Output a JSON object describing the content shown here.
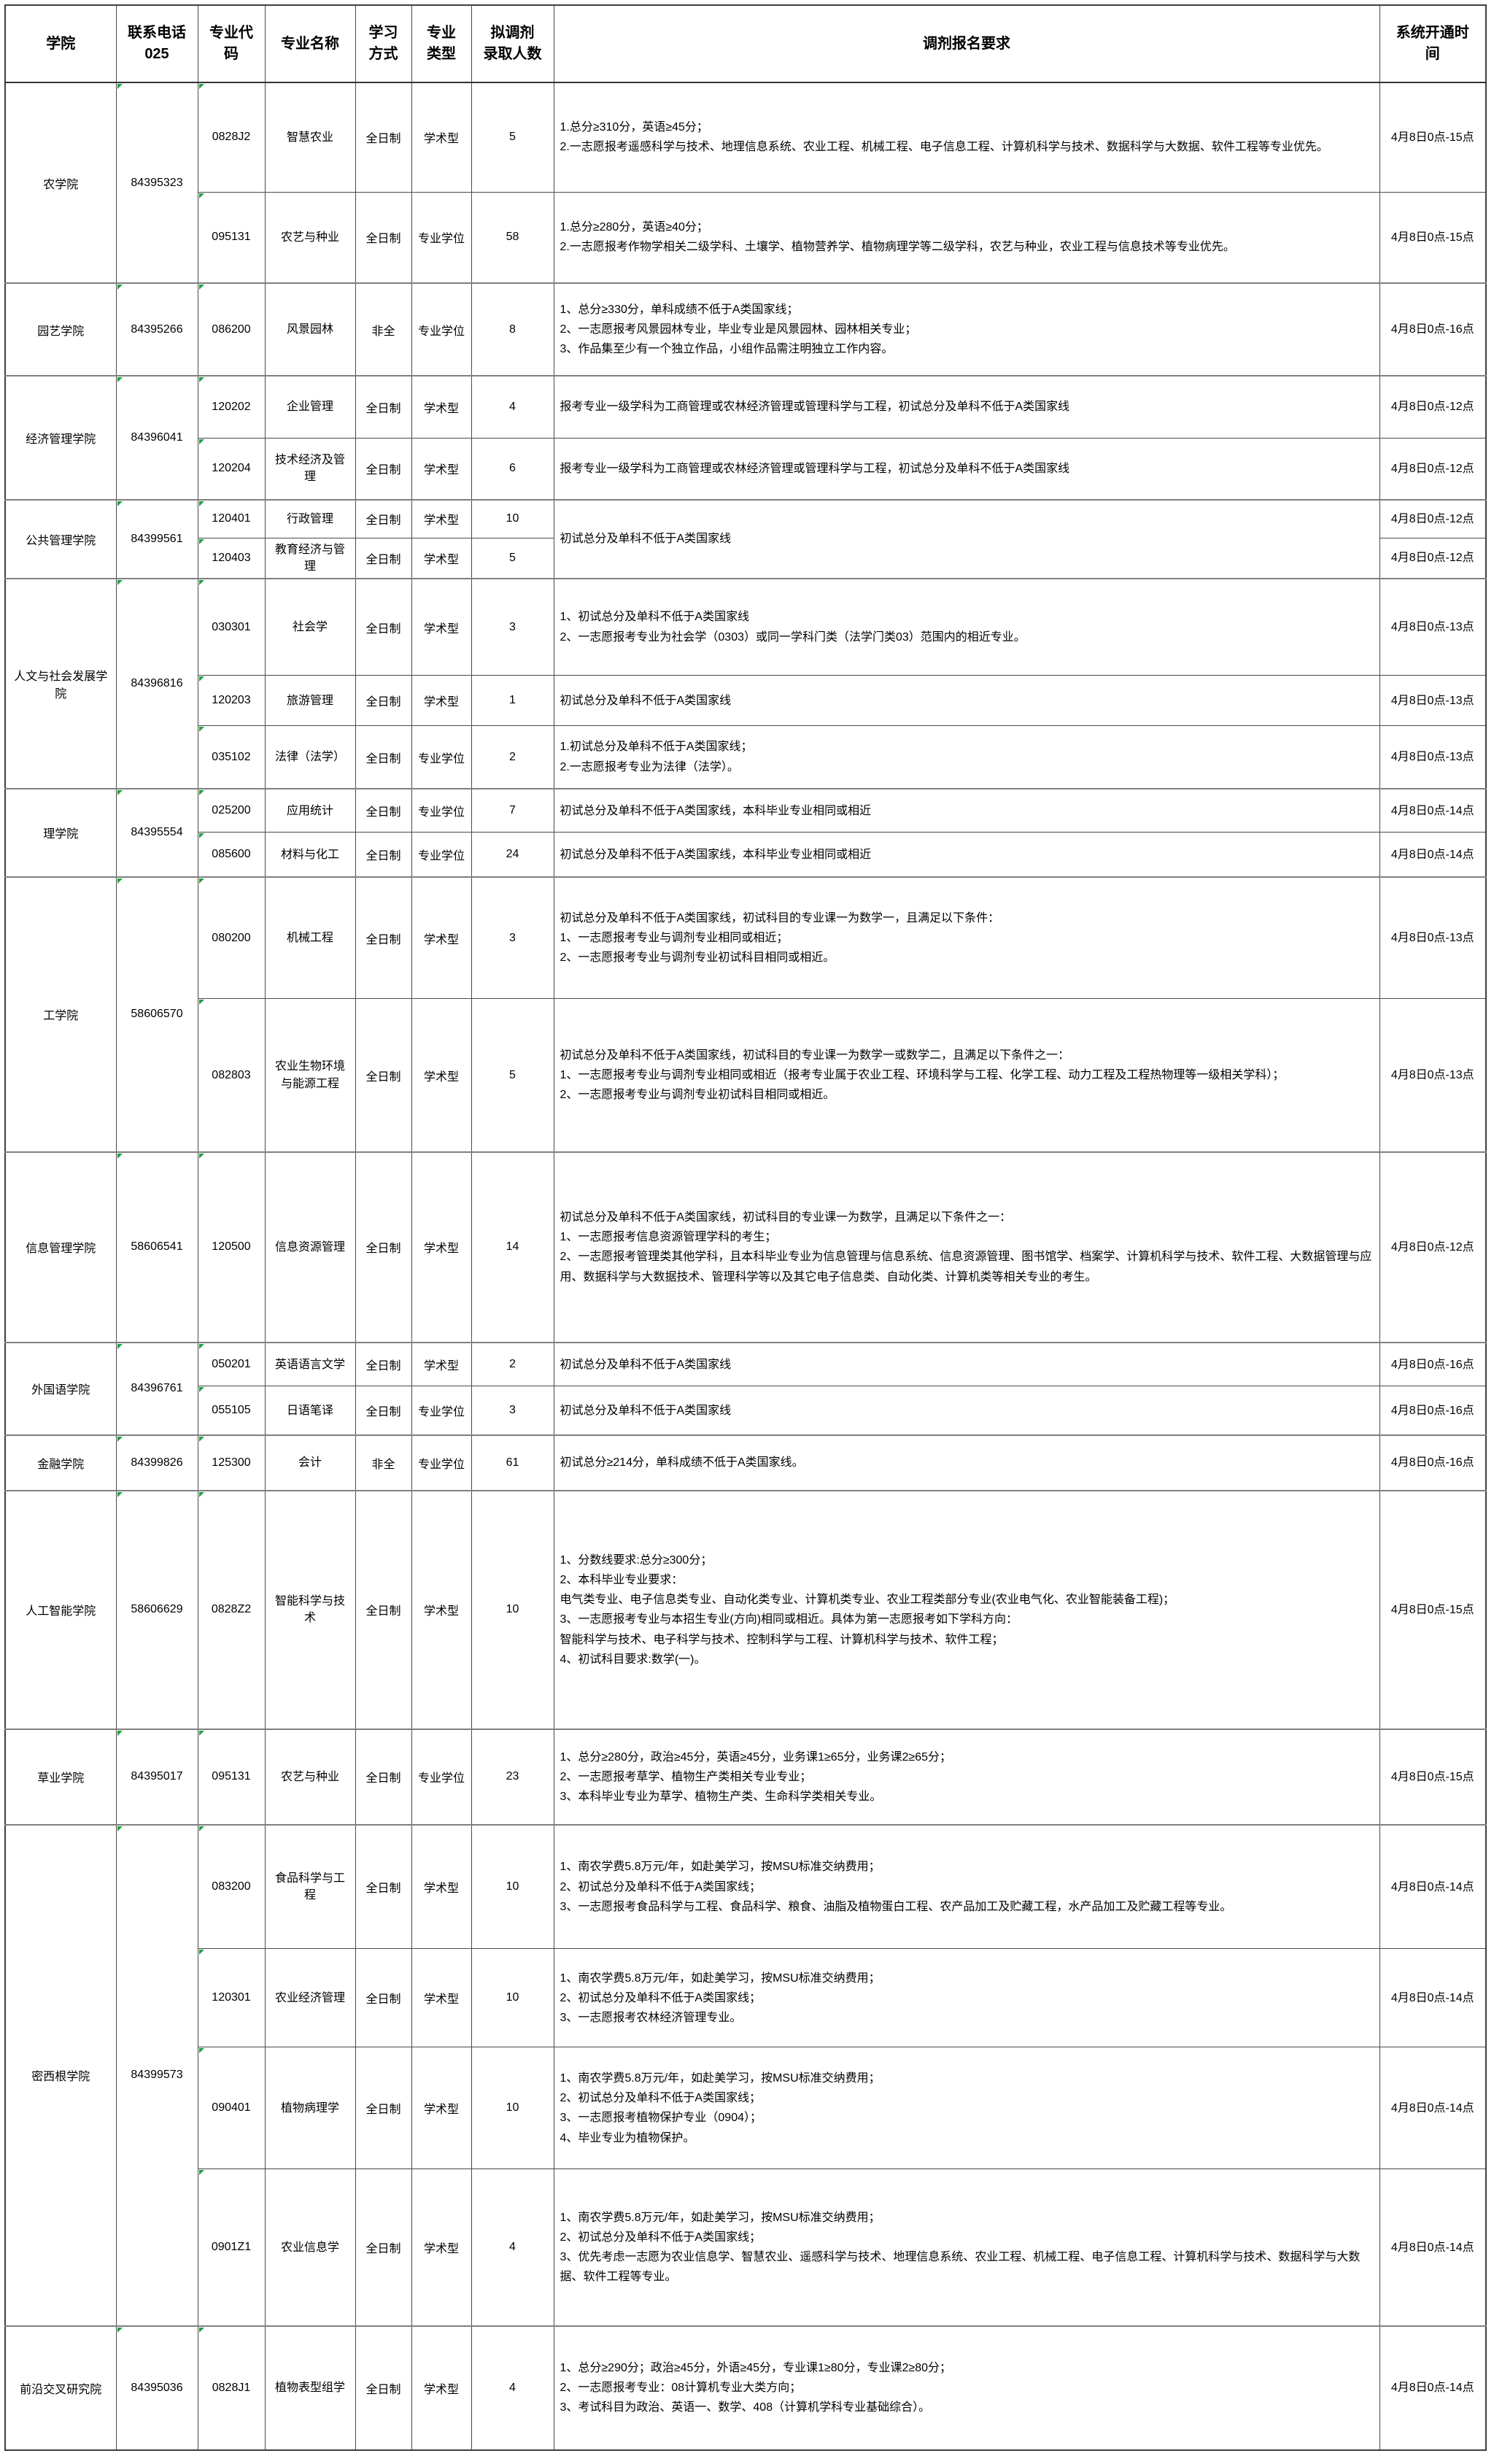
{
  "table": {
    "headers": [
      {
        "label": "学院"
      },
      {
        "label": "联系电话\n025"
      },
      {
        "label": "专业代\n码"
      },
      {
        "label": "专业名称"
      },
      {
        "label": "学习\n方式"
      },
      {
        "label": "专业\n类型"
      },
      {
        "label": "拟调剂\n录取人数"
      },
      {
        "label": "调剂报名要求"
      },
      {
        "label": "系统开通时\n间"
      }
    ],
    "groups": [
      {
        "college": "农学院",
        "phone": "84395323",
        "merged_requirements": null,
        "rows": [
          {
            "code": "0828J2",
            "major": "智慧农业",
            "mode": "全日制",
            "type": "学术型",
            "quota": "5",
            "requirements": "1.总分≥310分，英语≥45分；\n2.一志愿报考遥感科学与技术、地理信息系统、农业工程、机械工程、电子信息工程、计算机科学与技术、数据科学与大数据、软件工程等专业优先。",
            "open_time": "4月8日0点-15点"
          },
          {
            "code": "095131",
            "major": "农艺与种业",
            "mode": "全日制",
            "type": "专业学位",
            "quota": "58",
            "requirements": "1.总分≥280分，英语≥40分；\n2.一志愿报考作物学相关二级学科、土壤学、植物营养学、植物病理学等二级学科，农艺与种业，农业工程与信息技术等专业优先。",
            "open_time": "4月8日0点-15点"
          }
        ]
      },
      {
        "college": "园艺学院",
        "phone": "84395266",
        "merged_requirements": null,
        "rows": [
          {
            "code": "086200",
            "major": "风景园林",
            "mode": "非全",
            "type": "专业学位",
            "quota": "8",
            "requirements": "1、总分≥330分，单科成绩不低于A类国家线；\n2、一志愿报考风景园林专业，毕业专业是风景园林、园林相关专业；\n3、作品集至少有一个独立作品，小组作品需注明独立工作内容。",
            "open_time": "4月8日0点-16点"
          }
        ]
      },
      {
        "college": "经济管理学院",
        "phone": "84396041",
        "merged_requirements": null,
        "rows": [
          {
            "code": "120202",
            "major": "企业管理",
            "mode": "全日制",
            "type": "学术型",
            "quota": "4",
            "requirements": "报考专业一级学科为工商管理或农林经济管理或管理科学与工程，初试总分及单科不低于A类国家线",
            "open_time": "4月8日0点-12点"
          },
          {
            "code": "120204",
            "major": "技术经济及管理",
            "mode": "全日制",
            "type": "学术型",
            "quota": "6",
            "requirements": "报考专业一级学科为工商管理或农林经济管理或管理科学与工程，初试总分及单科不低于A类国家线",
            "open_time": "4月8日0点-12点"
          }
        ]
      },
      {
        "college": "公共管理学院",
        "phone": "84399561",
        "merged_requirements": "初试总分及单科不低于A类国家线",
        "rows": [
          {
            "code": "120401",
            "major": "行政管理",
            "mode": "全日制",
            "type": "学术型",
            "quota": "10",
            "requirements": null,
            "open_time": "4月8日0点-12点"
          },
          {
            "code": "120403",
            "major": "教育经济与管理",
            "mode": "全日制",
            "type": "学术型",
            "quota": "5",
            "requirements": null,
            "open_time": "4月8日0点-12点"
          }
        ]
      },
      {
        "college": "人文与社会发展学院",
        "phone": "84396816",
        "merged_requirements": null,
        "rows": [
          {
            "code": "030301",
            "major": "社会学",
            "mode": "全日制",
            "type": "学术型",
            "quota": "3",
            "requirements": "1、初试总分及单科不低于A类国家线\n2、一志愿报考专业为社会学（0303）或同一学科门类（法学门类03）范围内的相近专业。",
            "open_time": "4月8日0点-13点"
          },
          {
            "code": "120203",
            "major": "旅游管理",
            "mode": "全日制",
            "type": "学术型",
            "quota": "1",
            "requirements": "初试总分及单科不低于A类国家线",
            "open_time": "4月8日0点-13点"
          },
          {
            "code": "035102",
            "major": "法律（法学）",
            "mode": "全日制",
            "type": "专业学位",
            "quota": "2",
            "requirements": "1.初试总分及单科不低于A类国家线；\n2.一志愿报考专业为法律（法学）。",
            "open_time": "4月8日0点-13点"
          }
        ]
      },
      {
        "college": "理学院",
        "phone": "84395554",
        "merged_requirements": null,
        "rows": [
          {
            "code": "025200",
            "major": "应用统计",
            "mode": "全日制",
            "type": "专业学位",
            "quota": "7",
            "requirements": "初试总分及单科不低于A类国家线，本科毕业专业相同或相近",
            "open_time": "4月8日0点-14点"
          },
          {
            "code": "085600",
            "major": "材料与化工",
            "mode": "全日制",
            "type": "专业学位",
            "quota": "24",
            "requirements": "初试总分及单科不低于A类国家线，本科毕业专业相同或相近",
            "open_time": "4月8日0点-14点"
          }
        ]
      },
      {
        "college": "工学院",
        "phone": "58606570",
        "merged_requirements": null,
        "rows": [
          {
            "code": "080200",
            "major": "机械工程",
            "mode": "全日制",
            "type": "学术型",
            "quota": "3",
            "requirements": "初试总分及单科不低于A类国家线，初试科目的专业课一为数学一，且满足以下条件：\n1、一志愿报考专业与调剂专业相同或相近；\n2、一志愿报考专业与调剂专业初试科目相同或相近。",
            "open_time": "4月8日0点-13点"
          },
          {
            "code": "082803",
            "major": "农业生物环境与能源工程",
            "mode": "全日制",
            "type": "学术型",
            "quota": "5",
            "requirements": "初试总分及单科不低于A类国家线，初试科目的专业课一为数学一或数学二，且满足以下条件之一：\n1、一志愿报考专业与调剂专业相同或相近（报考专业属于农业工程、环境科学与工程、化学工程、动力工程及工程热物理等一级相关学科）；\n2、一志愿报考专业与调剂专业初试科目相同或相近。",
            "open_time": "4月8日0点-13点"
          }
        ]
      },
      {
        "college": "信息管理学院",
        "phone": "58606541",
        "merged_requirements": null,
        "rows": [
          {
            "code": "120500",
            "major": "信息资源管理",
            "mode": "全日制",
            "type": "学术型",
            "quota": "14",
            "requirements": "初试总分及单科不低于A类国家线，初试科目的专业课一为数学，且满足以下条件之一：\n1、一志愿报考信息资源管理学科的考生；\n2、一志愿报考管理类其他学科，且本科毕业专业为信息管理与信息系统、信息资源管理、图书馆学、档案学、计算机科学与技术、软件工程、大数据管理与应用、数据科学与大数据技术、管理科学等以及其它电子信息类、自动化类、计算机类等相关专业的考生。",
            "open_time": "4月8日0点-12点"
          }
        ]
      },
      {
        "college": "外国语学院",
        "phone": "84396761",
        "merged_requirements": null,
        "rows": [
          {
            "code": "050201",
            "major": "英语语言文学",
            "mode": "全日制",
            "type": "学术型",
            "quota": "2",
            "requirements": "初试总分及单科不低于A类国家线",
            "open_time": "4月8日0点-16点"
          },
          {
            "code": "055105",
            "major": "日语笔译",
            "mode": "全日制",
            "type": "专业学位",
            "quota": "3",
            "requirements": "初试总分及单科不低于A类国家线",
            "open_time": "4月8日0点-16点"
          }
        ]
      },
      {
        "college": "金融学院",
        "phone": "84399826",
        "merged_requirements": null,
        "rows": [
          {
            "code": "125300",
            "major": "会计",
            "mode": "非全",
            "type": "专业学位",
            "quota": "61",
            "requirements": "初试总分≥214分，单科成绩不低于A类国家线。",
            "open_time": "4月8日0点-16点"
          }
        ]
      },
      {
        "college": "人工智能学院",
        "phone": "58606629",
        "merged_requirements": null,
        "rows": [
          {
            "code": "0828Z2",
            "major": "智能科学与技术",
            "mode": "全日制",
            "type": "学术型",
            "quota": "10",
            "requirements": "1、分数线要求:总分≥300分；\n2、本科毕业专业要求：\n电气类专业、电子信息类专业、自动化类专业、计算机类专业、农业工程类部分专业(农业电气化、农业智能装备工程)；\n3、一志愿报考专业与本招生专业(方向)相同或相近。具体为第一志愿报考如下学科方向：\n智能科学与技术、电子科学与技术、控制科学与工程、计算机科学与技术、软件工程；\n4、初试科目要求:数学(一)。",
            "open_time": "4月8日0点-15点"
          }
        ]
      },
      {
        "college": "草业学院",
        "phone": "84395017",
        "merged_requirements": null,
        "rows": [
          {
            "code": "095131",
            "major": "农艺与种业",
            "mode": "全日制",
            "type": "专业学位",
            "quota": "23",
            "requirements": "1、总分≥280分，政治≥45分，英语≥45分，业务课1≥65分，业务课2≥65分；\n2、一志愿报考草学、植物生产类相关专业专业；\n3、本科毕业专业为草学、植物生产类、生命科学类相关专业。",
            "open_time": "4月8日0点-15点"
          }
        ]
      },
      {
        "college": "密西根学院",
        "phone": "84399573",
        "merged_requirements": null,
        "rows": [
          {
            "code": "083200",
            "major": "食品科学与工程",
            "mode": "全日制",
            "type": "学术型",
            "quota": "10",
            "requirements": "1、南农学费5.8万元/年，如赴美学习，按MSU标准交纳费用；\n2、初试总分及单科不低于A类国家线；\n3、一志愿报考食品科学与工程、食品科学、粮食、油脂及植物蛋白工程、农产品加工及贮藏工程，水产品加工及贮藏工程等专业。",
            "open_time": "4月8日0点-14点"
          },
          {
            "code": "120301",
            "major": "农业经济管理",
            "mode": "全日制",
            "type": "学术型",
            "quota": "10",
            "requirements": "1、南农学费5.8万元/年，如赴美学习，按MSU标准交纳费用；\n2、初试总分及单科不低于A类国家线；\n3、一志愿报考农林经济管理专业。",
            "open_time": "4月8日0点-14点"
          },
          {
            "code": "090401",
            "major": "植物病理学",
            "mode": "全日制",
            "type": "学术型",
            "quota": "10",
            "requirements": "1、南农学费5.8万元/年，如赴美学习，按MSU标准交纳费用；\n2、初试总分及单科不低于A类国家线；\n3、一志愿报考植物保护专业（0904）；\n4、毕业专业为植物保护。",
            "open_time": "4月8日0点-14点"
          },
          {
            "code": "0901Z1",
            "major": "农业信息学",
            "mode": "全日制",
            "type": "学术型",
            "quota": "4",
            "requirements": "1、南农学费5.8万元/年，如赴美学习，按MSU标准交纳费用；\n2、初试总分及单科不低于A类国家线；\n3、优先考虑一志愿为农业信息学、智慧农业、遥感科学与技术、地理信息系统、农业工程、机械工程、电子信息工程、计算机科学与技术、数据科学与大数据、软件工程等专业。",
            "open_time": "4月8日0点-14点"
          }
        ]
      },
      {
        "college": "前沿交叉研究院",
        "phone": "84395036",
        "merged_requirements": null,
        "rows": [
          {
            "code": "0828J1",
            "major": "植物表型组学",
            "mode": "全日制",
            "type": "学术型",
            "quota": "4",
            "requirements": "1、总分≥290分；政治≥45分，外语≥45分，专业课1≥80分，专业课2≥80分；\n2、一志愿报考专业：08计算机专业大类方向；\n3、考试科目为政治、英语一、数学、408（计算机学科专业基础综合）。",
            "open_time": "4月8日0点-14点"
          }
        ]
      }
    ]
  },
  "colors": {
    "border": "#4a4a4a",
    "group_separator": "#7f7f7f",
    "excel_flag_green": "#1fa23d",
    "background": "#ffffff",
    "text": "#000000"
  }
}
